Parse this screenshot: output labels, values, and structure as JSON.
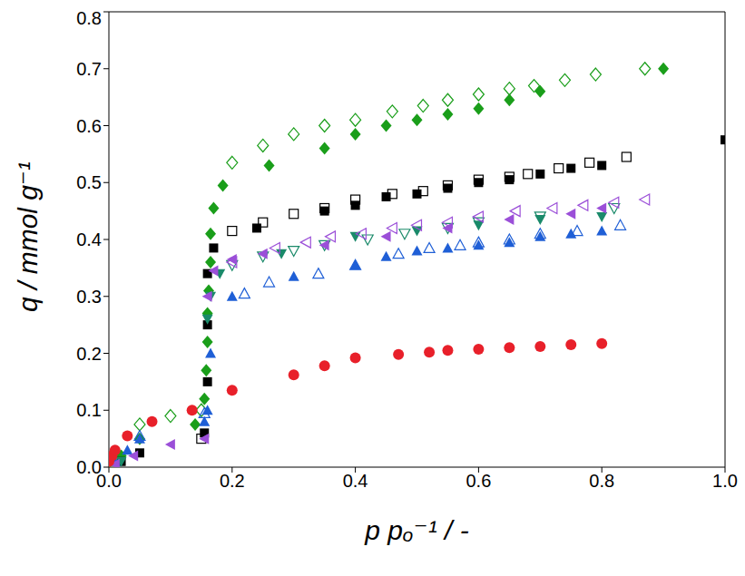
{
  "chart_data": {
    "type": "scatter",
    "x_label": "p pₒ⁻¹ / -",
    "y_label": "q / mmol g⁻¹",
    "xlim": [
      0,
      1.0
    ],
    "ylim": [
      0,
      0.8
    ],
    "xticks": [
      {
        "value": 0,
        "label": "0.0"
      },
      {
        "value": 0.2,
        "label": "0.2"
      },
      {
        "value": 0.4,
        "label": "0.4"
      },
      {
        "value": 0.6,
        "label": "0.6"
      },
      {
        "value": 0.8,
        "label": "0.8"
      },
      {
        "value": 1.0,
        "label": "1.0"
      }
    ],
    "yticks": [
      {
        "value": 0,
        "label": "0.0"
      },
      {
        "value": 0.1,
        "label": "0.1"
      },
      {
        "value": 0.2,
        "label": "0.2"
      },
      {
        "value": 0.3,
        "label": "0.3"
      },
      {
        "value": 0.4,
        "label": "0.4"
      },
      {
        "value": 0.5,
        "label": "0.5"
      },
      {
        "value": 0.6,
        "label": "0.6"
      },
      {
        "value": 0.7,
        "label": "0.7"
      },
      {
        "value": 0.8,
        "label": "0.8"
      }
    ],
    "grid": false,
    "series": [
      {
        "color": "#1a9e1a",
        "marker": "diamond",
        "x": [
          0,
          0.02,
          0.05,
          0.14,
          0.155,
          0.158,
          0.16,
          0.16,
          0.162,
          0.165,
          0.165,
          0.17,
          0.185,
          0.26,
          0.35,
          0.4,
          0.45,
          0.5,
          0.55,
          0.6,
          0.65,
          0.7,
          0.9
        ],
        "values": [
          0.01,
          0.02,
          0.05,
          0.075,
          0.12,
          0.17,
          0.22,
          0.27,
          0.31,
          0.36,
          0.41,
          0.455,
          0.495,
          0.53,
          0.56,
          0.585,
          0.6,
          0.61,
          0.62,
          0.63,
          0.645,
          0.66,
          0.7
        ]
      },
      {
        "color": "#1a9e1a",
        "marker": "diamond-open",
        "x": [
          0,
          0.05,
          0.1,
          0.15,
          0.2,
          0.25,
          0.3,
          0.35,
          0.4,
          0.46,
          0.51,
          0.55,
          0.6,
          0.65,
          0.69,
          0.74,
          0.79,
          0.87
        ],
        "values": [
          0.01,
          0.075,
          0.09,
          0.1,
          0.535,
          0.565,
          0.585,
          0.6,
          0.61,
          0.625,
          0.635,
          0.645,
          0.655,
          0.665,
          0.67,
          0.68,
          0.69,
          0.7
        ]
      },
      {
        "color": "#000000",
        "marker": "square",
        "x": [
          0.02,
          0.05,
          0.155,
          0.16,
          0.16,
          0.16,
          0.17,
          0.24,
          0.35,
          0.4,
          0.45,
          0.5,
          0.55,
          0.6,
          0.65,
          0.7,
          0.75,
          0.8,
          1.0
        ],
        "values": [
          0.01,
          0.025,
          0.06,
          0.15,
          0.25,
          0.34,
          0.385,
          0.42,
          0.45,
          0.46,
          0.475,
          0.48,
          0.49,
          0.5,
          0.505,
          0.515,
          0.525,
          0.53,
          0.575
        ]
      },
      {
        "color": "#000000",
        "marker": "square-open",
        "x": [
          0.15,
          0.2,
          0.25,
          0.3,
          0.35,
          0.4,
          0.46,
          0.51,
          0.55,
          0.6,
          0.65,
          0.68,
          0.73,
          0.78,
          0.84
        ],
        "values": [
          0.05,
          0.415,
          0.43,
          0.445,
          0.455,
          0.47,
          0.48,
          0.485,
          0.495,
          0.505,
          0.51,
          0.515,
          0.525,
          0.535,
          0.545
        ]
      },
      {
        "color": "#1f5fd6",
        "marker": "triangle",
        "x": [
          0.01,
          0.03,
          0.05,
          0.155,
          0.16,
          0.165,
          0.2,
          0.3,
          0.4,
          0.45,
          0.5,
          0.55,
          0.6,
          0.65,
          0.7,
          0.75,
          0.8
        ],
        "values": [
          0.01,
          0.03,
          0.05,
          0.08,
          0.1,
          0.2,
          0.3,
          0.335,
          0.355,
          0.37,
          0.38,
          0.385,
          0.39,
          0.395,
          0.405,
          0.41,
          0.415
        ]
      },
      {
        "color": "#1f5fd6",
        "marker": "triangle-open",
        "x": [
          0.05,
          0.155,
          0.22,
          0.26,
          0.34,
          0.4,
          0.47,
          0.52,
          0.57,
          0.6,
          0.65,
          0.7,
          0.76,
          0.83
        ],
        "values": [
          0.055,
          0.095,
          0.305,
          0.325,
          0.34,
          0.355,
          0.375,
          0.385,
          0.39,
          0.395,
          0.4,
          0.41,
          0.415,
          0.425
        ]
      },
      {
        "color": "#1a8a6a",
        "marker": "triangle-down",
        "x": [
          0.02,
          0.16,
          0.165,
          0.18,
          0.28,
          0.4,
          0.5,
          0.6,
          0.7,
          0.8
        ],
        "values": [
          0.01,
          0.26,
          0.3,
          0.34,
          0.375,
          0.405,
          0.415,
          0.425,
          0.435,
          0.44
        ]
      },
      {
        "color": "#1a8a6a",
        "marker": "triangle-down-open",
        "x": [
          0.2,
          0.25,
          0.3,
          0.35,
          0.42,
          0.48,
          0.55,
          0.6,
          0.7,
          0.82
        ],
        "values": [
          0.355,
          0.37,
          0.38,
          0.39,
          0.4,
          0.41,
          0.42,
          0.43,
          0.44,
          0.455
        ]
      },
      {
        "color": "#9b4fd8",
        "marker": "triangle-left",
        "x": [
          0.01,
          0.04,
          0.1,
          0.155,
          0.16,
          0.17,
          0.2,
          0.25,
          0.35,
          0.45,
          0.55,
          0.65,
          0.75,
          0.8
        ],
        "values": [
          0.005,
          0.02,
          0.04,
          0.05,
          0.3,
          0.345,
          0.365,
          0.375,
          0.39,
          0.405,
          0.42,
          0.435,
          0.445,
          0.455
        ]
      },
      {
        "color": "#9b4fd8",
        "marker": "triangle-left-open",
        "x": [
          0.2,
          0.27,
          0.32,
          0.36,
          0.41,
          0.46,
          0.5,
          0.55,
          0.6,
          0.66,
          0.72,
          0.77,
          0.82,
          0.87
        ],
        "values": [
          0.36,
          0.385,
          0.395,
          0.405,
          0.41,
          0.42,
          0.425,
          0.43,
          0.44,
          0.45,
          0.455,
          0.46,
          0.465,
          0.47
        ]
      },
      {
        "color": "#e8202a",
        "marker": "circle",
        "x": [
          0,
          0.005,
          0.01,
          0.03,
          0.07,
          0.135,
          0.2,
          0.3,
          0.35,
          0.4,
          0.47,
          0.52,
          0.55,
          0.6,
          0.65,
          0.7,
          0.75,
          0.8
        ],
        "values": [
          0.01,
          0.02,
          0.03,
          0.055,
          0.08,
          0.1,
          0.135,
          0.162,
          0.178,
          0.192,
          0.198,
          0.202,
          0.205,
          0.207,
          0.21,
          0.212,
          0.215,
          0.217
        ]
      }
    ]
  }
}
